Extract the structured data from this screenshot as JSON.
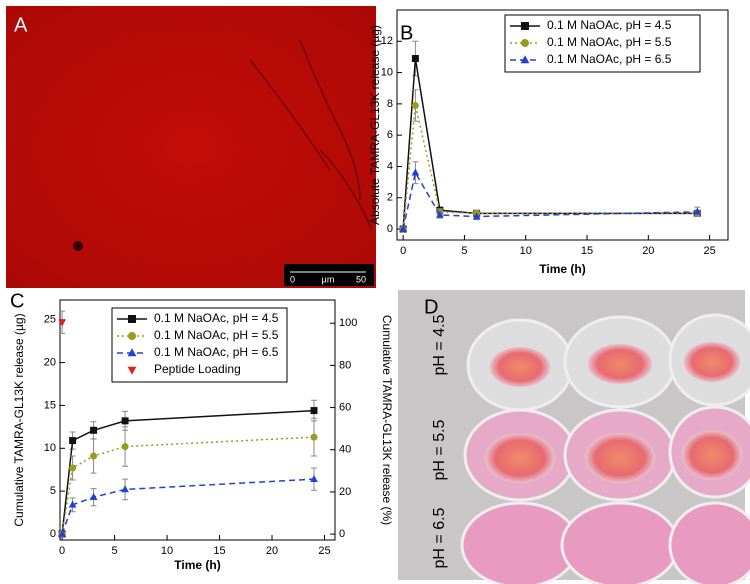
{
  "panels": {
    "A": {
      "label": "A",
      "scale_bar": {
        "start": "0",
        "unit": "µm",
        "end": "50"
      }
    },
    "D": {
      "label": "D",
      "row_labels": [
        "pH = 4.5",
        "pH = 5.5",
        "pH = 6.5"
      ]
    }
  },
  "chart_data": [
    {
      "type": "line",
      "panel": "B",
      "x_label": "Time (h)",
      "y_label": "Absolute TAMRA-GL13K release (µg)",
      "x": [
        0,
        1,
        3,
        6,
        24
      ],
      "xlim": [
        -0.5,
        26.5
      ],
      "xticks": [
        0,
        5,
        10,
        15,
        20,
        25
      ],
      "ylim": [
        -0.7,
        14
      ],
      "yticks": [
        0,
        2,
        4,
        6,
        8,
        10,
        12
      ],
      "legend": "top-right",
      "series": [
        {
          "name": "0.1 M NaOAc, pH = 4.5",
          "color": "#111111",
          "dash": "solid",
          "marker": "square",
          "values": [
            0,
            10.9,
            1.2,
            1.0,
            1.0
          ],
          "errors": [
            0,
            1.1,
            0.2,
            0.2,
            0.2
          ]
        },
        {
          "name": "0.1 M NaOAc, pH = 5.5",
          "color": "#9a9a1e",
          "dash": "dotted",
          "marker": "circle",
          "values": [
            0,
            7.9,
            1.1,
            1.0,
            1.0
          ],
          "errors": [
            0,
            1.0,
            0.2,
            0.2,
            0.2
          ]
        },
        {
          "name": "0.1 M NaOAc, pH = 6.5",
          "color": "#2340d0",
          "dash": "dashed",
          "marker": "triangle",
          "values": [
            0,
            3.6,
            0.9,
            0.8,
            1.1
          ],
          "errors": [
            0,
            0.7,
            0.2,
            0.2,
            0.3
          ]
        }
      ]
    },
    {
      "type": "line",
      "panel": "C",
      "x_label": "Time (h)",
      "y_label": "Cumulative TAMRA-GL13K release (µg)",
      "y2_label": "Cumulative TAMRA-GL13K release (%)",
      "x": [
        0,
        1,
        3,
        6,
        24
      ],
      "xlim": [
        -0.2,
        26
      ],
      "xticks": [
        0,
        5,
        10,
        15,
        20,
        25
      ],
      "ylim": [
        -0.7,
        27.3
      ],
      "yticks": [
        0,
        5,
        10,
        15,
        20,
        25
      ],
      "y2lim": [
        -2.8,
        111
      ],
      "y2ticks": [
        0,
        20,
        40,
        60,
        80,
        100
      ],
      "legend": "top-left",
      "series": [
        {
          "name": "0.1 M NaOAc, pH = 4.5",
          "color": "#111111",
          "dash": "solid",
          "marker": "square",
          "values": [
            0,
            10.9,
            12.1,
            13.2,
            14.4
          ],
          "errors": [
            0,
            1.0,
            1.0,
            1.1,
            1.2
          ]
        },
        {
          "name": "0.1 M NaOAc, pH = 5.5",
          "color": "#9a9a1e",
          "dash": "dotted",
          "marker": "circle",
          "values": [
            0,
            7.7,
            9.1,
            10.2,
            11.3
          ],
          "errors": [
            0,
            1.4,
            2.0,
            2.3,
            2.2
          ]
        },
        {
          "name": "0.1 M NaOAc, pH = 6.5",
          "color": "#2340d0",
          "dash": "dashed",
          "marker": "triangle",
          "values": [
            0,
            3.4,
            4.3,
            5.2,
            6.4
          ],
          "errors": [
            0,
            0.8,
            1.0,
            1.2,
            1.3
          ]
        },
        {
          "name": "Peptide Loading",
          "color": "#e02020",
          "dash": "none",
          "marker": "triangle-down",
          "x": [
            0
          ],
          "values": [
            24.7
          ],
          "errors": [
            1.3
          ]
        }
      ]
    }
  ]
}
